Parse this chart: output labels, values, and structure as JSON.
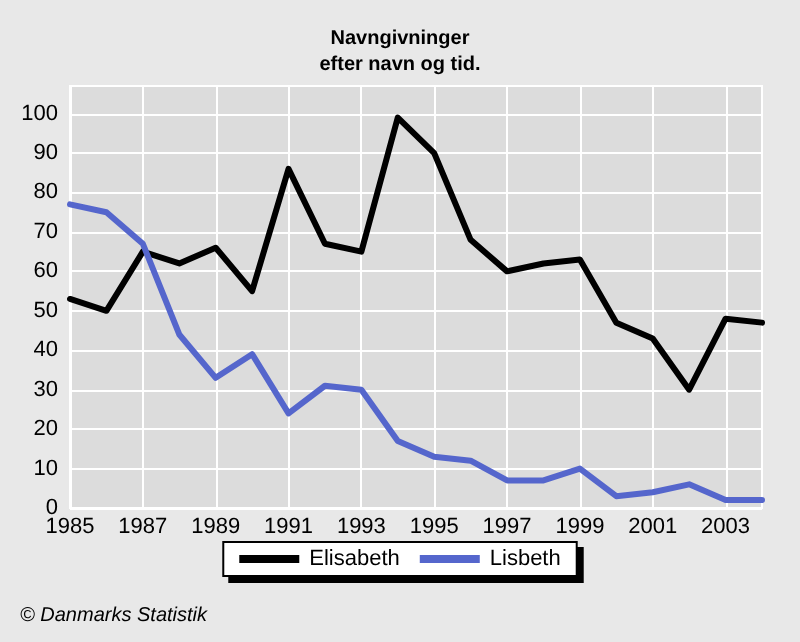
{
  "chart_data": {
    "type": "line",
    "title": "Navngivninger\nefter navn og tid.",
    "x": [
      1985,
      1986,
      1987,
      1988,
      1989,
      1990,
      1991,
      1992,
      1993,
      1994,
      1995,
      1996,
      1997,
      1998,
      1999,
      2000,
      2001,
      2002,
      2003,
      2004
    ],
    "series": [
      {
        "name": "Elisabeth",
        "color": "#000000",
        "values": [
          53,
          50,
          65,
          62,
          66,
          55,
          86,
          67,
          65,
          99,
          90,
          68,
          60,
          62,
          63,
          47,
          43,
          30,
          48,
          47
        ]
      },
      {
        "name": "Lisbeth",
        "color": "#5566cc",
        "values": [
          77,
          75,
          67,
          44,
          33,
          39,
          24,
          31,
          30,
          17,
          13,
          12,
          7,
          7,
          10,
          3,
          4,
          6,
          2,
          2
        ]
      }
    ],
    "xlim": [
      1985,
      2004
    ],
    "xticks": [
      1985,
      1987,
      1989,
      1991,
      1993,
      1995,
      1997,
      1999,
      2001,
      2003
    ],
    "ylim": [
      0,
      107
    ],
    "yticks": [
      0,
      10,
      20,
      30,
      40,
      50,
      60,
      70,
      80,
      90,
      100
    ],
    "grid": true,
    "legend": "bottom",
    "marker": "none",
    "line_style": "solid",
    "annotations": [
      "© Danmarks Statistik"
    ]
  }
}
